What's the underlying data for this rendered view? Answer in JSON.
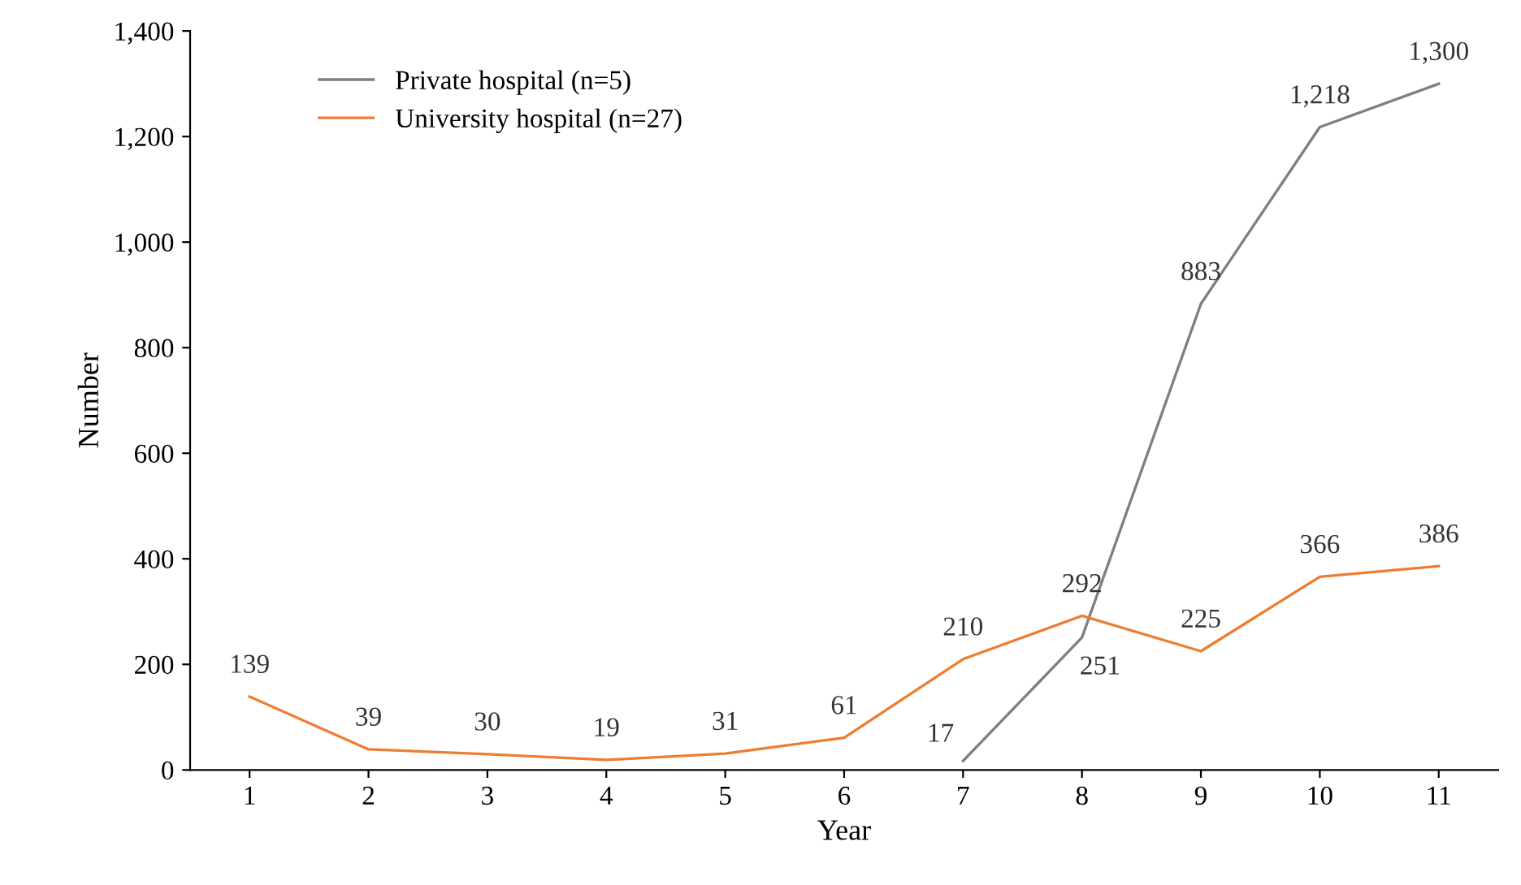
{
  "chart_data": {
    "type": "line",
    "xlabel": "Year",
    "ylabel": "Number",
    "categories": [
      "1",
      "2",
      "3",
      "4",
      "5",
      "6",
      "7",
      "8",
      "9",
      "10",
      "11"
    ],
    "series": [
      {
        "name": "Private hospital (n=5)",
        "color": "#7f7f7f",
        "values": [
          null,
          null,
          null,
          null,
          null,
          null,
          17,
          251,
          883,
          1218,
          1300
        ],
        "value_labels": [
          null,
          null,
          null,
          null,
          null,
          null,
          "17",
          "251",
          "883",
          "1,218",
          "1,300"
        ]
      },
      {
        "name": "University hospital (n=27)",
        "color": "#ed7d31",
        "values": [
          139,
          39,
          30,
          19,
          31,
          61,
          210,
          292,
          225,
          366,
          386
        ],
        "value_labels": [
          "139",
          "39",
          "30",
          "19",
          "31",
          "61",
          "210",
          "292",
          "225",
          "366",
          "386"
        ]
      }
    ],
    "ylim": [
      0,
      1400
    ],
    "yticks": [
      0,
      200,
      400,
      600,
      800,
      {
        "value": 1000,
        "label": "1,000"
      },
      {
        "value": 1200,
        "label": "1,200"
      },
      {
        "value": 1400,
        "label": "1,400"
      }
    ],
    "grid": false,
    "legend": "top left",
    "marker": "none",
    "line_style": "solid"
  }
}
